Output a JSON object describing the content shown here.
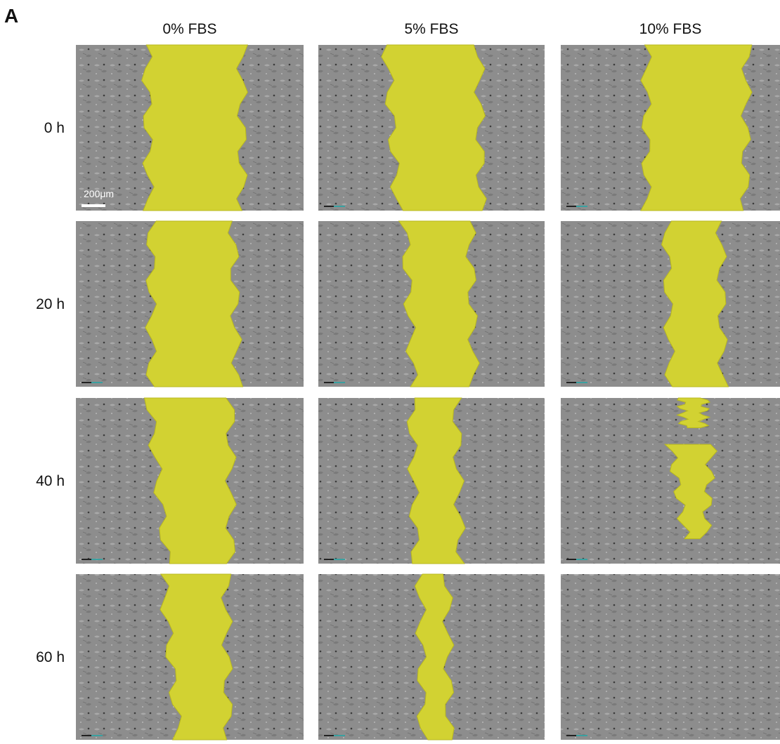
{
  "panel_label": "A",
  "columns": [
    "0% FBS",
    "5% FBS",
    "10% FBS"
  ],
  "rows": [
    "0 h",
    "20 h",
    "40 h",
    "60 h"
  ],
  "scale_bar": "200μm"
}
